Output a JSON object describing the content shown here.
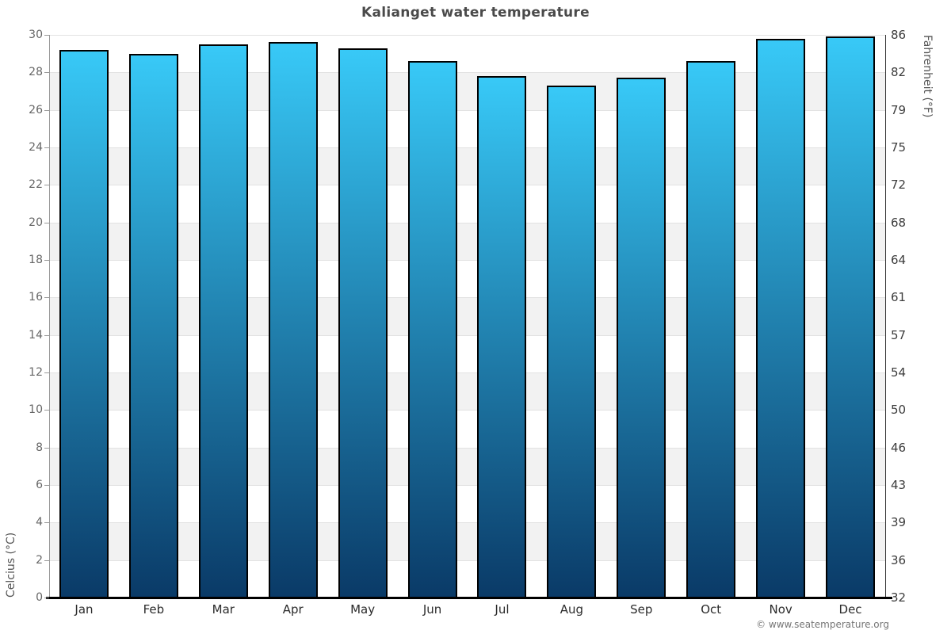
{
  "title": "Kalianget water temperature",
  "footer": {
    "credit": "© www.seatemperature.org"
  },
  "axes": {
    "left_label": "Celcius (°C)",
    "right_label": "Fahrenheit (°F)",
    "celsius_ticks_top_down": [
      30,
      28,
      26,
      24,
      22,
      20,
      18,
      16,
      14,
      12,
      10,
      8,
      6,
      4,
      2,
      0
    ],
    "fahrenheit_ticks_top_down": [
      86,
      82,
      79,
      75,
      72,
      68,
      64,
      61,
      57,
      54,
      50,
      46,
      43,
      39,
      36,
      32
    ]
  },
  "chart_data": {
    "type": "bar",
    "title": "Kalianget water temperature",
    "categories": [
      "Jan",
      "Feb",
      "Mar",
      "Apr",
      "May",
      "Jun",
      "Jul",
      "Aug",
      "Sep",
      "Oct",
      "Nov",
      "Dec"
    ],
    "values": [
      29.2,
      29.0,
      29.5,
      29.6,
      29.3,
      28.6,
      27.8,
      27.3,
      27.7,
      28.6,
      29.8,
      29.9
    ],
    "xlabel": "",
    "ylabel": "Celcius (°C)",
    "y2label": "Fahrenheit (°F)",
    "ylim": [
      0,
      30
    ],
    "y_tick_step": 2,
    "grid": true,
    "legend": "none",
    "band_fill_alternating": true
  },
  "colors": {
    "bar_gradient_top": "#38c9f7",
    "bar_gradient_bottom": "#0a3a67",
    "bar_border": "#000000",
    "band_gray": "#f2f2f2",
    "band_white": "#ffffff",
    "gridline": "#e2e2e2",
    "axis_left": "#999999",
    "axis_right": "#333333",
    "axis_bottom": "#000000",
    "title_text": "#4a4a4a",
    "tick_text_left": "#666666",
    "tick_text_right": "#3c3c3c"
  }
}
